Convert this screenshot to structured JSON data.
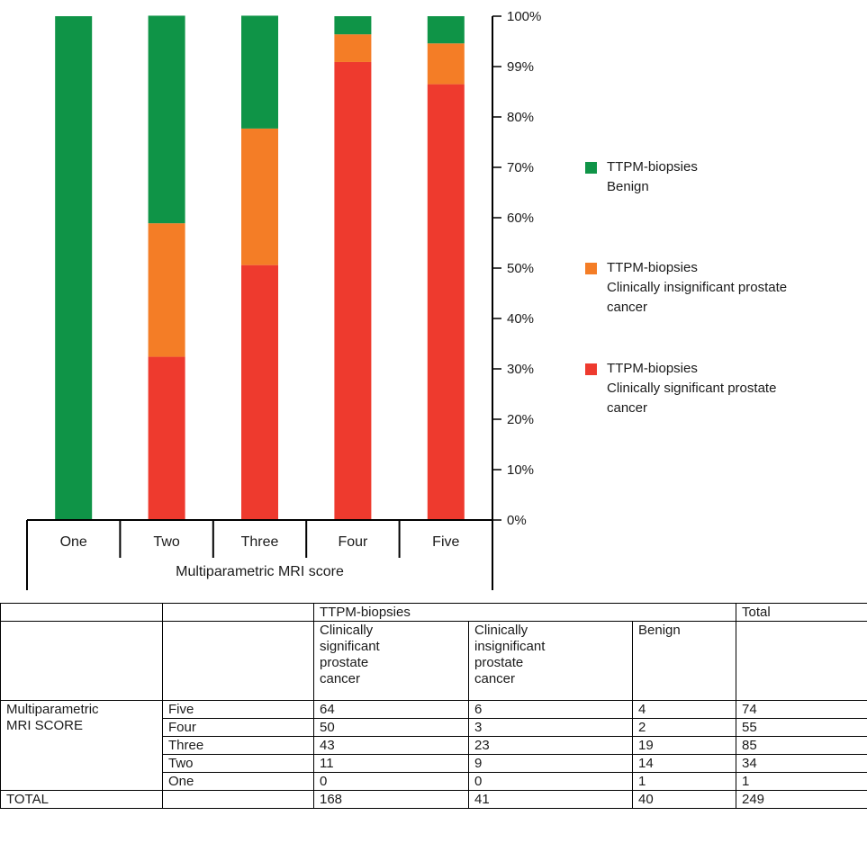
{
  "chart_data": {
    "type": "bar",
    "stacked": true,
    "percent": true,
    "categories": [
      "One",
      "Two",
      "Three",
      "Four",
      "Five"
    ],
    "xlabel": "Multiparametric MRI score",
    "y_tick_labels": [
      "100%",
      "99%",
      "80%",
      "70%",
      "60%",
      "50%",
      "40%",
      "30%",
      "20%",
      "10%",
      "0%"
    ],
    "series": [
      {
        "name": "Clinically significant prostate cancer",
        "color": "#ee3a2e",
        "values": [
          0,
          32.4,
          50.6,
          90.9,
          86.5
        ]
      },
      {
        "name": "Clinically insignificant prostate cancer",
        "color": "#f47d26",
        "values": [
          0,
          26.5,
          27.1,
          5.5,
          8.1
        ]
      },
      {
        "name": "Benign",
        "color": "#0f9447",
        "values": [
          100,
          41.2,
          22.4,
          3.6,
          5.4
        ]
      }
    ],
    "legend_position": "right",
    "legend": [
      {
        "line1": "TTPM-biopsies",
        "line2": "Benign",
        "line3": "",
        "color": "#0f9447"
      },
      {
        "line1": "TTPM-biopsies",
        "line2": "Clinically insignificant prostate",
        "line3": "cancer",
        "color": "#f47d26"
      },
      {
        "line1": "TTPM-biopsies",
        "line2": "Clinically significant prostate",
        "line3": "cancer",
        "color": "#ee3a2e"
      }
    ],
    "ylim": [
      0,
      100
    ]
  },
  "table": {
    "group_header": "TTPM-biopsies",
    "total_header": "Total",
    "col_headers": [
      "Clinically\nsignificant\nprostate\ncancer",
      "Clinically\ninsignificant\nprostate\ncancer",
      "Benign"
    ],
    "row_group_label": "Multiparametric\nMRI SCORE",
    "rows": [
      {
        "label": "Five",
        "values": [
          "64",
          "6",
          "4",
          "74"
        ]
      },
      {
        "label": "Four",
        "values": [
          "50",
          "3",
          "2",
          "55"
        ]
      },
      {
        "label": "Three",
        "values": [
          "43",
          "23",
          "19",
          "85"
        ]
      },
      {
        "label": "Two",
        "values": [
          "11",
          "9",
          "14",
          "34"
        ]
      },
      {
        "label": "One",
        "values": [
          "0",
          "0",
          "1",
          "1"
        ]
      }
    ],
    "total_row": {
      "label": "TOTAL",
      "values": [
        "168",
        "41",
        "40",
        "249"
      ]
    }
  }
}
